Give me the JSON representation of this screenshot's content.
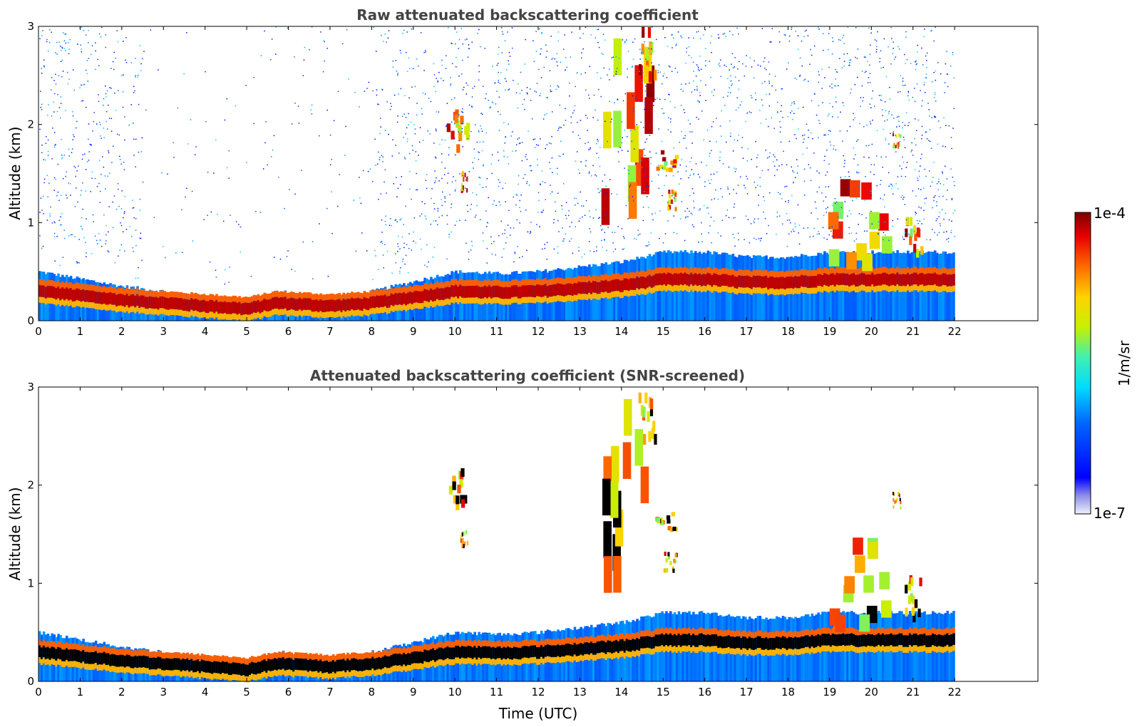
{
  "chart_data": [
    {
      "type": "heatmap",
      "title": "Raw attenuated backscattering coefficient",
      "xlabel": "",
      "ylabel": "Altitude (km)",
      "xlim": [
        0,
        24
      ],
      "ylim": [
        0,
        3
      ],
      "x_ticks": [
        "0",
        "1",
        "2",
        "3",
        "4",
        "5",
        "6",
        "7",
        "8",
        "9",
        "10",
        "11",
        "12",
        "13",
        "14",
        "15",
        "16",
        "17",
        "18",
        "19",
        "20",
        "21",
        "22"
      ],
      "y_ticks": [
        "0",
        "1",
        "2",
        "3"
      ],
      "data_extent_hours": [
        0,
        22
      ],
      "aerosol_layer_top_km": [
        [
          0,
          0.5
        ],
        [
          2,
          0.35
        ],
        [
          4,
          0.25
        ],
        [
          5,
          0.2
        ],
        [
          5.7,
          0.3
        ],
        [
          7,
          0.25
        ],
        [
          8,
          0.3
        ],
        [
          9,
          0.4
        ],
        [
          10,
          0.5
        ],
        [
          11,
          0.48
        ],
        [
          12,
          0.5
        ],
        [
          13,
          0.55
        ],
        [
          14,
          0.6
        ],
        [
          15,
          0.7
        ],
        [
          16,
          0.7
        ],
        [
          17,
          0.65
        ],
        [
          18,
          0.65
        ],
        [
          19,
          0.7
        ],
        [
          20,
          0.7
        ],
        [
          21,
          0.7
        ],
        [
          22,
          0.7
        ]
      ],
      "cloud_features": [
        {
          "t": [
            13.5,
            14.6
          ],
          "alt_km": [
            0.9,
            2.6
          ]
        },
        {
          "t": [
            14.4,
            14.8
          ],
          "alt_km": [
            2.4,
            2.9
          ]
        },
        {
          "t": [
            9.8,
            10.3
          ],
          "alt_km": [
            1.7,
            2.1
          ]
        },
        {
          "t": [
            10.1,
            10.3
          ],
          "alt_km": [
            1.3,
            1.5
          ]
        },
        {
          "t": [
            14.8,
            15.3
          ],
          "alt_km": [
            1.5,
            1.7
          ]
        },
        {
          "t": [
            15.0,
            15.3
          ],
          "alt_km": [
            1.1,
            1.3
          ]
        },
        {
          "t": [
            18.9,
            20.3
          ],
          "alt_km": [
            0.5,
            1.3
          ]
        },
        {
          "t": [
            20.8,
            21.2
          ],
          "alt_km": [
            0.6,
            1.0
          ]
        },
        {
          "t": [
            20.5,
            20.7
          ],
          "alt_km": [
            1.75,
            1.9
          ]
        }
      ],
      "noise": true
    },
    {
      "type": "heatmap",
      "title": "Attenuated backscattering coefficient (SNR-screened)",
      "xlabel": "Time (UTC)",
      "ylabel": "Altitude (km)",
      "xlim": [
        0,
        24
      ],
      "ylim": [
        0,
        3
      ],
      "x_ticks": [
        "0",
        "1",
        "2",
        "3",
        "4",
        "5",
        "6",
        "7",
        "8",
        "9",
        "10",
        "11",
        "12",
        "13",
        "14",
        "15",
        "16",
        "17",
        "18",
        "19",
        "20",
        "21",
        "22"
      ],
      "y_ticks": [
        "0",
        "1",
        "2",
        "3"
      ],
      "data_extent_hours": [
        0,
        22
      ],
      "noise": false
    }
  ],
  "colorbar": {
    "min_label": "1e-7",
    "max_label": "1e-4",
    "unit_label": "1/m/sr",
    "scale": "log"
  }
}
